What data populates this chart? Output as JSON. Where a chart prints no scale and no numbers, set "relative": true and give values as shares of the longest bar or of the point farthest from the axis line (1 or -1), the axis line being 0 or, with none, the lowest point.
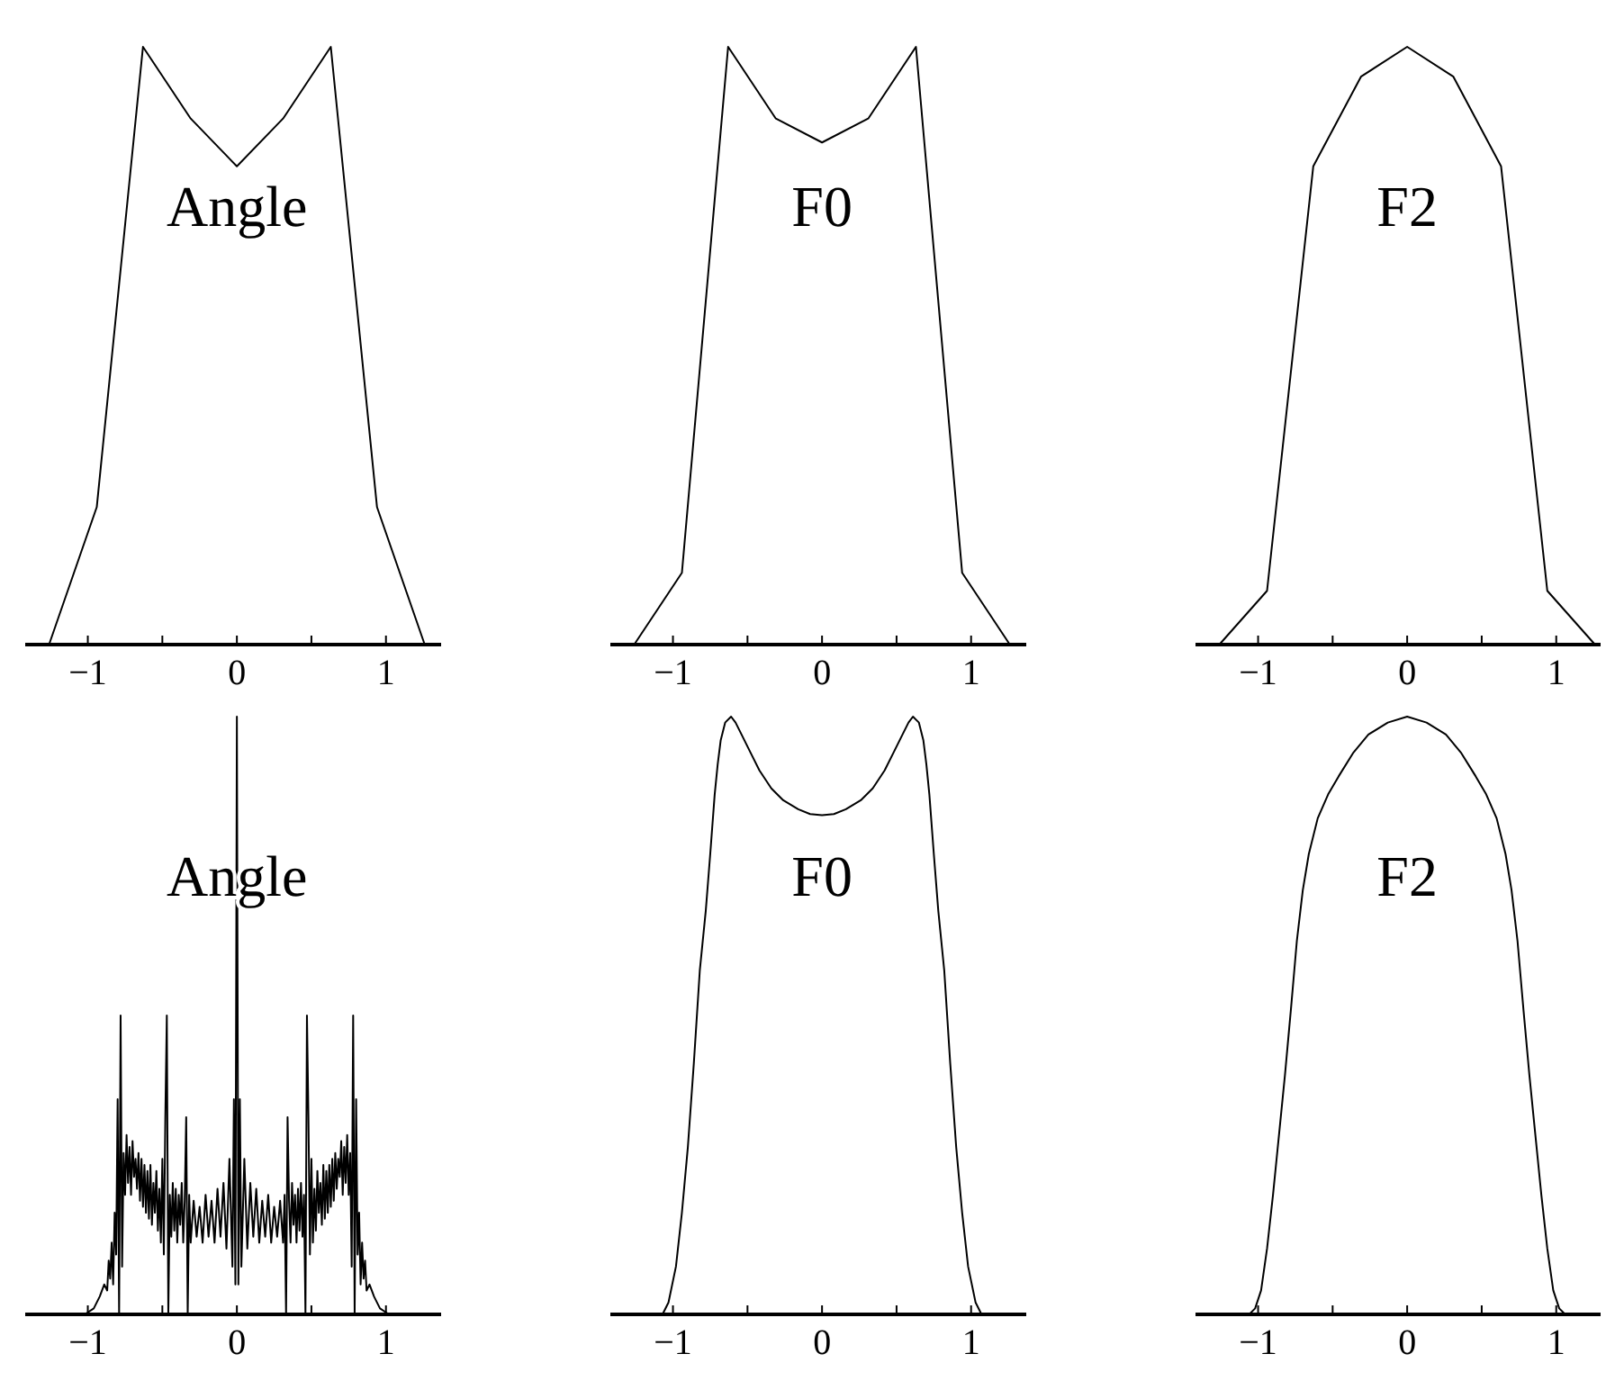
{
  "chart_data": [
    {
      "type": "line",
      "title": "Angle",
      "relative": true,
      "color": "#000000",
      "xlim": [
        -1.42,
        1.37
      ],
      "xticks": [
        {
          "value": -1,
          "label": "−1"
        },
        {
          "value": -0.5,
          "label": null
        },
        {
          "value": 0,
          "label": "0"
        },
        {
          "value": 0.5,
          "label": null
        },
        {
          "value": 1,
          "label": "1"
        }
      ],
      "x": [
        -1.26,
        -0.94,
        -0.63,
        -0.31,
        0,
        0.31,
        0.63,
        0.94,
        1.26
      ],
      "values": [
        0,
        0.23,
        1,
        0.88,
        0.8,
        0.88,
        1,
        0.23,
        0
      ]
    },
    {
      "type": "line",
      "title": "F0",
      "relative": true,
      "color": "#000000",
      "xlim": [
        -1.42,
        1.37
      ],
      "xticks": [
        {
          "value": -1,
          "label": "−1"
        },
        {
          "value": -0.5,
          "label": null
        },
        {
          "value": 0,
          "label": "0"
        },
        {
          "value": 0.5,
          "label": null
        },
        {
          "value": 1,
          "label": "1"
        }
      ],
      "x": [
        -1.26,
        -0.94,
        -0.63,
        -0.31,
        0,
        0.31,
        0.63,
        0.94,
        1.26
      ],
      "values": [
        0,
        0.12,
        1,
        0.88,
        0.84,
        0.88,
        1,
        0.12,
        0
      ]
    },
    {
      "type": "line",
      "title": "F2",
      "relative": true,
      "color": "#000000",
      "xlim": [
        -1.42,
        1.37
      ],
      "xticks": [
        {
          "value": -1,
          "label": "−1"
        },
        {
          "value": -0.5,
          "label": null
        },
        {
          "value": 0,
          "label": "0"
        },
        {
          "value": 0.5,
          "label": null
        },
        {
          "value": 1,
          "label": "1"
        }
      ],
      "x": [
        -1.26,
        -0.94,
        -0.63,
        -0.31,
        0,
        0.31,
        0.63,
        0.94,
        1.26
      ],
      "values": [
        0,
        0.09,
        0.8,
        0.95,
        1,
        0.95,
        0.8,
        0.09,
        0
      ]
    },
    {
      "type": "line",
      "title": "Angle",
      "relative": true,
      "color": "#000000",
      "xlim": [
        -1.42,
        1.37
      ],
      "xticks": [
        {
          "value": -1,
          "label": "−1"
        },
        {
          "value": -0.5,
          "label": null
        },
        {
          "value": 0,
          "label": "0"
        },
        {
          "value": 0.5,
          "label": null
        },
        {
          "value": 1,
          "label": "1"
        }
      ],
      "x": [
        -1.1,
        -1.02,
        -0.96,
        -0.92,
        -0.89,
        -0.87,
        -0.86,
        -0.85,
        -0.84,
        -0.83,
        -0.82,
        -0.81,
        -0.8,
        -0.79,
        -0.78,
        -0.77,
        -0.76,
        -0.75,
        -0.74,
        -0.73,
        -0.72,
        -0.71,
        -0.7,
        -0.69,
        -0.68,
        -0.67,
        -0.66,
        -0.65,
        -0.64,
        -0.63,
        -0.62,
        -0.61,
        -0.6,
        -0.59,
        -0.58,
        -0.57,
        -0.56,
        -0.55,
        -0.54,
        -0.53,
        -0.52,
        -0.51,
        -0.5,
        -0.49,
        -0.48,
        -0.47,
        -0.46,
        -0.45,
        -0.44,
        -0.43,
        -0.42,
        -0.41,
        -0.4,
        -0.39,
        -0.38,
        -0.37,
        -0.36,
        -0.35,
        -0.34,
        -0.33,
        -0.32,
        -0.31,
        -0.29,
        -0.27,
        -0.25,
        -0.23,
        -0.21,
        -0.19,
        -0.17,
        -0.15,
        -0.13,
        -0.11,
        -0.09,
        -0.07,
        -0.05,
        -0.03,
        -0.02,
        -0.01,
        0,
        0.01,
        0.02,
        0.03,
        0.05,
        0.07,
        0.09,
        0.11,
        0.13,
        0.15,
        0.17,
        0.19,
        0.21,
        0.23,
        0.25,
        0.27,
        0.29,
        0.31,
        0.32,
        0.33,
        0.34,
        0.35,
        0.36,
        0.37,
        0.38,
        0.39,
        0.4,
        0.41,
        0.42,
        0.43,
        0.44,
        0.45,
        0.46,
        0.47,
        0.48,
        0.49,
        0.5,
        0.51,
        0.52,
        0.53,
        0.54,
        0.55,
        0.56,
        0.57,
        0.58,
        0.59,
        0.6,
        0.61,
        0.62,
        0.63,
        0.64,
        0.65,
        0.66,
        0.67,
        0.68,
        0.69,
        0.7,
        0.71,
        0.72,
        0.73,
        0.74,
        0.75,
        0.76,
        0.77,
        0.78,
        0.79,
        0.8,
        0.81,
        0.82,
        0.83,
        0.84,
        0.85,
        0.86,
        0.87,
        0.89,
        0.92,
        0.96,
        1.02,
        1.1
      ],
      "values": [
        0,
        0,
        0.01,
        0.03,
        0.05,
        0.04,
        0.09,
        0.06,
        0.12,
        0.05,
        0.17,
        0.1,
        0.36,
        0,
        0.5,
        0.08,
        0.27,
        0.2,
        0.3,
        0.22,
        0.28,
        0.2,
        0.29,
        0.23,
        0.26,
        0.21,
        0.27,
        0.19,
        0.26,
        0.18,
        0.25,
        0.17,
        0.24,
        0.16,
        0.25,
        0.15,
        0.22,
        0.17,
        0.24,
        0.14,
        0.21,
        0.12,
        0.26,
        0.1,
        0.33,
        0.5,
        0,
        0.2,
        0.13,
        0.22,
        0.14,
        0.21,
        0.12,
        0.2,
        0.15,
        0.22,
        0.12,
        0.19,
        0.33,
        0,
        0.2,
        0.12,
        0.19,
        0.13,
        0.18,
        0.12,
        0.2,
        0.13,
        0.19,
        0.12,
        0.21,
        0.13,
        0.22,
        0.11,
        0.26,
        0.08,
        0.36,
        0.05,
        1,
        0.05,
        0.36,
        0.08,
        0.26,
        0.11,
        0.22,
        0.13,
        0.21,
        0.12,
        0.19,
        0.13,
        0.2,
        0.12,
        0.18,
        0.13,
        0.19,
        0.12,
        0.2,
        0,
        0.33,
        0.19,
        0.12,
        0.22,
        0.15,
        0.2,
        0.12,
        0.21,
        0.14,
        0.22,
        0.13,
        0.2,
        0,
        0.5,
        0.33,
        0.1,
        0.26,
        0.12,
        0.21,
        0.14,
        0.24,
        0.17,
        0.22,
        0.15,
        0.25,
        0.16,
        0.24,
        0.17,
        0.25,
        0.18,
        0.26,
        0.19,
        0.27,
        0.21,
        0.26,
        0.23,
        0.29,
        0.2,
        0.28,
        0.22,
        0.3,
        0.2,
        0.27,
        0.08,
        0.5,
        0,
        0.36,
        0.1,
        0.17,
        0.05,
        0.12,
        0.06,
        0.09,
        0.04,
        0.05,
        0.03,
        0.01,
        0,
        0
      ]
    },
    {
      "type": "line",
      "title": "F0",
      "relative": true,
      "color": "#000000",
      "xlim": [
        -1.42,
        1.37
      ],
      "xticks": [
        {
          "value": -1,
          "label": "−1"
        },
        {
          "value": -0.5,
          "label": null
        },
        {
          "value": 0,
          "label": "0"
        },
        {
          "value": 0.5,
          "label": null
        },
        {
          "value": 1,
          "label": "1"
        }
      ],
      "x": [
        -1.1,
        -1.07,
        -1.03,
        -0.98,
        -0.94,
        -0.9,
        -0.86,
        -0.82,
        -0.78,
        -0.75,
        -0.72,
        -0.7,
        -0.68,
        -0.65,
        -0.61,
        -0.58,
        -0.54,
        -0.48,
        -0.42,
        -0.34,
        -0.26,
        -0.16,
        -0.08,
        0,
        0.08,
        0.16,
        0.26,
        0.34,
        0.42,
        0.48,
        0.54,
        0.58,
        0.61,
        0.65,
        0.68,
        0.7,
        0.72,
        0.75,
        0.78,
        0.82,
        0.86,
        0.9,
        0.94,
        0.98,
        1.03,
        1.07,
        1.1
      ],
      "values": [
        0,
        0,
        0.02,
        0.08,
        0.17,
        0.28,
        0.42,
        0.575,
        0.675,
        0.77,
        0.87,
        0.92,
        0.96,
        0.99,
        1,
        0.99,
        0.97,
        0.94,
        0.91,
        0.88,
        0.86,
        0.845,
        0.837,
        0.835,
        0.837,
        0.845,
        0.86,
        0.88,
        0.91,
        0.94,
        0.97,
        0.99,
        1,
        0.99,
        0.96,
        0.92,
        0.87,
        0.77,
        0.675,
        0.575,
        0.42,
        0.28,
        0.17,
        0.08,
        0.02,
        0,
        0
      ]
    },
    {
      "type": "line",
      "title": "F2",
      "relative": true,
      "color": "#000000",
      "xlim": [
        -1.42,
        1.37
      ],
      "xticks": [
        {
          "value": -1,
          "label": "−1"
        },
        {
          "value": -0.5,
          "label": null
        },
        {
          "value": 0,
          "label": "0"
        },
        {
          "value": 0.5,
          "label": null
        },
        {
          "value": 1,
          "label": "1"
        }
      ],
      "x": [
        -1.1,
        -1.06,
        -1.02,
        -0.98,
        -0.94,
        -0.9,
        -0.86,
        -0.82,
        -0.78,
        -0.74,
        -0.7,
        -0.66,
        -0.6,
        -0.53,
        -0.46,
        -0.36,
        -0.26,
        -0.13,
        0,
        0.13,
        0.26,
        0.36,
        0.46,
        0.53,
        0.6,
        0.66,
        0.7,
        0.74,
        0.78,
        0.82,
        0.86,
        0.9,
        0.94,
        0.98,
        1.02,
        1.06,
        1.1
      ],
      "values": [
        0,
        0,
        0.01,
        0.04,
        0.11,
        0.2,
        0.3,
        0.4,
        0.51,
        0.625,
        0.71,
        0.77,
        0.83,
        0.87,
        0.9,
        0.94,
        0.97,
        0.99,
        1,
        0.99,
        0.97,
        0.94,
        0.9,
        0.87,
        0.83,
        0.77,
        0.71,
        0.625,
        0.51,
        0.4,
        0.3,
        0.2,
        0.11,
        0.04,
        0.01,
        0,
        0
      ]
    }
  ]
}
